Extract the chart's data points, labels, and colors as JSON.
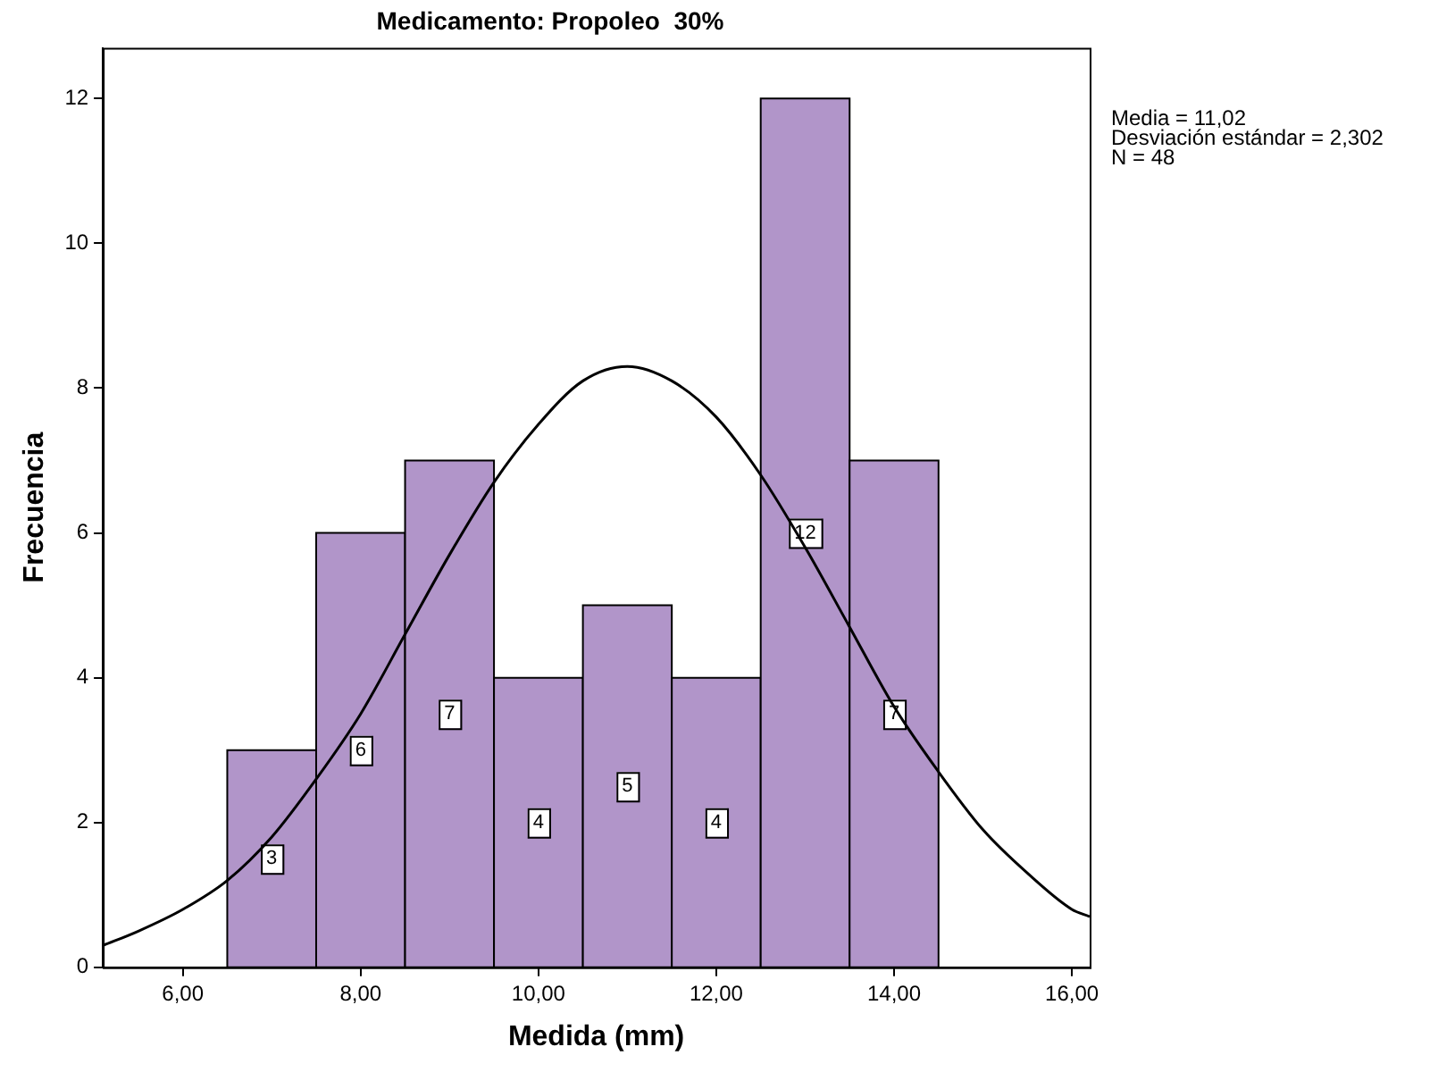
{
  "chart_data": {
    "type": "histogram",
    "title": "Medicamento: Propoleo  30%",
    "xlabel": "Medida (mm)",
    "ylabel": "Frecuencia",
    "bins": [
      6.5,
      7.5,
      8.5,
      9.5,
      10.5,
      11.5,
      12.5,
      13.5,
      14.5
    ],
    "values": [
      3,
      6,
      7,
      4,
      5,
      4,
      12,
      7
    ],
    "color": "#b195c9",
    "value_labels": [
      "3",
      "6",
      "7",
      "4",
      "5",
      "4",
      "12",
      "7"
    ],
    "series": [
      {
        "type": "line",
        "color": "#000000",
        "marker": "none",
        "x": [
          5.1,
          5.5,
          6,
          6.5,
          7,
          7.5,
          8,
          8.5,
          9,
          9.5,
          10,
          10.5,
          11,
          11.5,
          12,
          12.5,
          13,
          13.5,
          14,
          14.5,
          15,
          15.5,
          16,
          16.2
        ],
        "values": [
          0.3,
          0.5,
          0.8,
          1.2,
          1.8,
          2.6,
          3.5,
          4.6,
          5.7,
          6.7,
          7.5,
          8.1,
          8.3,
          8.1,
          7.6,
          6.8,
          5.8,
          4.7,
          3.6,
          2.7,
          1.9,
          1.3,
          0.8,
          0.7
        ]
      }
    ],
    "xlim": [
      5.1,
      16.2
    ],
    "xticks": [
      {
        "value": 6,
        "label": "6,00"
      },
      {
        "value": 8,
        "label": "8,00"
      },
      {
        "value": 10,
        "label": "10,00"
      },
      {
        "value": 12,
        "label": "12,00"
      },
      {
        "value": 14,
        "label": "14,00"
      },
      {
        "value": 16,
        "label": "16,00"
      }
    ],
    "ylim": [
      0,
      12.7
    ],
    "yticks": [
      0,
      2,
      4,
      6,
      8,
      10,
      12
    ],
    "grid": false,
    "legend": false,
    "annotations": [
      "Media = 11,02",
      "Desviación estándar = 2,302",
      "N = 48"
    ]
  }
}
